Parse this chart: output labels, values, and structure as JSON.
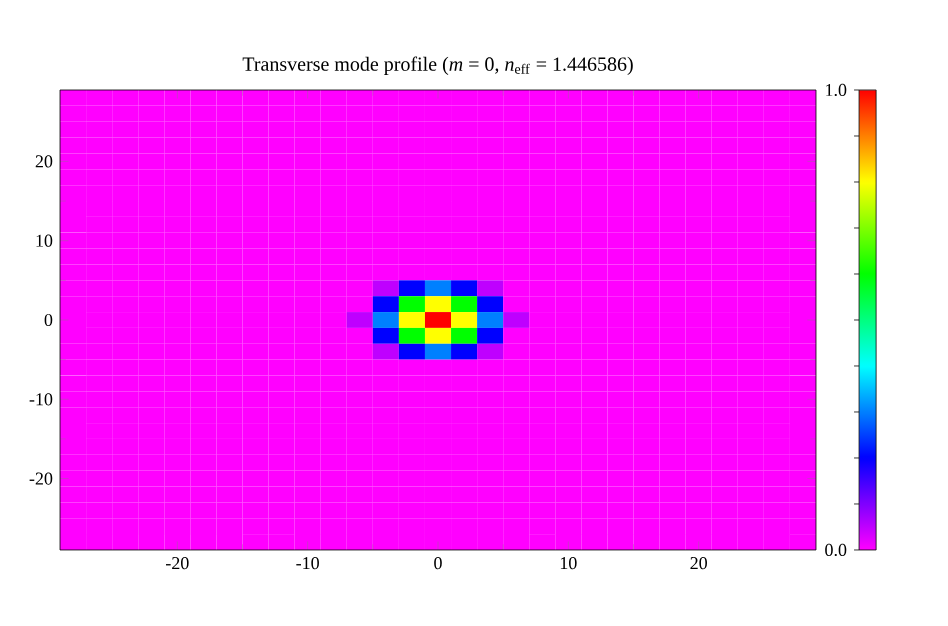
{
  "chart_data": {
    "type": "heatmap",
    "title": "Transverse mode profile (*m* = 0, *n*$_{eff}$ = 1.446586)",
    "xlim": [
      -29,
      29
    ],
    "ylim": [
      -29,
      29
    ],
    "xticks": [
      -20,
      -10,
      0,
      10,
      20
    ],
    "yticks": [
      -20,
      -10,
      0,
      10,
      20
    ],
    "clim": [
      0,
      1
    ],
    "cticks": [
      {
        "value": 0,
        "label": "0.0"
      },
      {
        "value": 0.1,
        "label": null
      },
      {
        "value": 0.2,
        "label": null
      },
      {
        "value": 0.3,
        "label": null
      },
      {
        "value": 0.4,
        "label": null
      },
      {
        "value": 0.5,
        "label": null
      },
      {
        "value": 0.6,
        "label": null
      },
      {
        "value": 0.7,
        "label": null
      },
      {
        "value": 0.8,
        "label": null
      },
      {
        "value": 0.9,
        "label": null
      },
      {
        "value": 1,
        "label": "1.0"
      }
    ],
    "colors": [
      "#ff00ff",
      "#0000ff",
      "#00ffff",
      "#00ff00",
      "#ffff00",
      "#ff0000"
    ],
    "cells": [
      [
        0,
        0,
        0,
        0,
        0,
        0,
        0,
        0,
        0,
        0,
        0,
        0,
        0,
        0,
        0,
        0,
        0,
        0,
        0,
        0,
        0,
        0,
        0,
        0,
        0,
        0,
        0,
        0,
        0
      ],
      [
        0,
        0,
        0,
        0,
        0,
        0,
        0,
        0,
        0,
        0,
        0,
        0,
        0,
        0,
        0,
        0,
        0,
        0,
        0,
        0,
        0,
        0,
        0,
        0,
        0,
        0,
        0,
        0,
        0
      ],
      [
        0,
        0,
        0,
        0,
        0,
        0,
        0,
        0,
        0,
        0,
        0,
        0,
        0,
        0,
        0,
        0,
        0,
        0,
        0,
        0,
        0,
        0,
        0,
        0,
        0,
        0,
        0,
        0,
        0
      ],
      [
        0,
        0,
        0,
        0,
        0,
        0,
        0,
        0,
        0,
        0,
        0,
        0,
        0,
        0,
        0,
        0,
        0,
        0,
        0,
        0,
        0,
        0,
        0,
        0,
        0,
        0,
        0,
        0,
        0
      ],
      [
        0,
        0,
        0,
        0,
        0,
        0,
        0,
        0,
        0,
        0,
        0,
        0,
        0,
        0,
        0,
        0,
        0,
        0,
        0,
        0,
        0,
        0,
        0,
        0,
        0,
        0,
        0,
        0,
        0
      ],
      [
        0,
        0,
        0,
        0,
        0,
        0,
        0,
        0,
        0,
        0,
        0,
        0,
        0,
        0,
        0,
        0,
        0,
        0,
        0,
        0,
        0,
        0,
        0,
        0,
        0,
        0,
        0,
        0,
        0
      ],
      [
        0,
        0,
        0,
        0,
        0,
        0,
        0,
        0,
        0,
        0,
        0,
        0,
        0,
        0,
        0,
        0,
        0,
        0,
        0,
        0,
        0,
        0,
        0,
        0,
        0,
        0,
        0,
        0,
        0
      ],
      [
        0,
        0,
        0,
        0,
        0,
        0,
        0,
        0,
        0,
        0,
        0,
        0,
        0,
        0,
        0,
        0,
        0,
        0,
        0,
        0,
        0,
        0,
        0,
        0,
        0,
        0,
        0,
        0,
        0
      ],
      [
        0,
        0,
        0,
        0,
        0,
        0,
        0,
        0,
        0,
        0,
        0,
        0,
        0,
        0,
        0,
        0,
        0,
        0,
        0,
        0,
        0,
        0,
        0,
        0,
        0,
        0,
        0,
        0,
        0
      ],
      [
        0,
        0,
        0,
        0,
        0,
        0,
        0,
        0,
        0,
        0,
        0,
        0,
        0,
        0,
        0,
        0,
        0,
        0,
        0,
        0,
        0,
        0,
        0,
        0,
        0,
        0,
        0,
        0,
        0
      ],
      [
        0,
        0,
        0,
        0,
        0,
        0,
        0,
        0,
        0,
        0,
        0,
        0,
        0,
        0,
        0,
        0,
        0,
        0,
        0,
        0,
        0,
        0,
        0,
        0,
        0,
        0,
        0,
        0,
        0
      ],
      [
        0,
        0,
        0,
        0,
        0,
        0,
        0,
        0,
        0,
        0,
        0,
        0,
        0,
        0,
        0,
        0,
        0,
        0,
        0,
        0,
        0,
        0,
        0,
        0,
        0,
        0,
        0,
        0,
        0
      ],
      [
        0,
        0,
        0,
        0,
        0,
        0,
        0,
        0,
        0,
        0,
        0,
        0,
        0.05,
        0.2,
        0.3,
        0.2,
        0.05,
        0,
        0,
        0,
        0,
        0,
        0,
        0,
        0,
        0,
        0,
        0,
        0
      ],
      [
        0,
        0,
        0,
        0,
        0,
        0,
        0,
        0,
        0,
        0,
        0,
        0,
        0.2,
        0.6,
        0.8,
        0.6,
        0.2,
        0,
        0,
        0,
        0,
        0,
        0,
        0,
        0,
        0,
        0,
        0,
        0
      ],
      [
        0,
        0,
        0,
        0,
        0,
        0,
        0,
        0,
        0,
        0,
        0,
        0.05,
        0.3,
        0.8,
        1.0,
        0.8,
        0.3,
        0.05,
        0,
        0,
        0,
        0,
        0,
        0,
        0,
        0,
        0,
        0,
        0
      ],
      [
        0,
        0,
        0,
        0,
        0,
        0,
        0,
        0,
        0,
        0,
        0,
        0,
        0.2,
        0.6,
        0.8,
        0.6,
        0.2,
        0,
        0,
        0,
        0,
        0,
        0,
        0,
        0,
        0,
        0,
        0,
        0
      ],
      [
        0,
        0,
        0,
        0,
        0,
        0,
        0,
        0,
        0,
        0,
        0,
        0,
        0.05,
        0.2,
        0.3,
        0.2,
        0.05,
        0,
        0,
        0,
        0,
        0,
        0,
        0,
        0,
        0,
        0,
        0,
        0
      ],
      [
        0,
        0,
        0,
        0,
        0,
        0,
        0,
        0,
        0,
        0,
        0,
        0,
        0,
        0,
        0,
        0,
        0,
        0,
        0,
        0,
        0,
        0,
        0,
        0,
        0,
        0,
        0,
        0,
        0
      ],
      [
        0,
        0,
        0,
        0,
        0,
        0,
        0,
        0,
        0,
        0,
        0,
        0,
        0,
        0,
        0,
        0,
        0,
        0,
        0,
        0,
        0,
        0,
        0,
        0,
        0,
        0,
        0,
        0,
        0
      ],
      [
        0,
        0,
        0,
        0,
        0,
        0,
        0,
        0,
        0,
        0,
        0,
        0,
        0,
        0,
        0,
        0,
        0,
        0,
        0,
        0,
        0,
        0,
        0,
        0,
        0,
        0,
        0,
        0,
        0
      ],
      [
        0,
        0,
        0,
        0,
        0,
        0,
        0,
        0,
        0,
        0,
        0,
        0,
        0,
        0,
        0,
        0,
        0,
        0,
        0,
        0,
        0,
        0,
        0,
        0,
        0,
        0,
        0,
        0,
        0
      ],
      [
        0,
        0,
        0,
        0,
        0,
        0,
        0,
        0,
        0,
        0,
        0,
        0,
        0,
        0,
        0,
        0,
        0,
        0,
        0,
        0,
        0,
        0,
        0,
        0,
        0,
        0,
        0,
        0,
        0
      ],
      [
        0,
        0,
        0,
        0,
        0,
        0,
        0,
        0,
        0,
        0,
        0,
        0,
        0,
        0,
        0,
        0,
        0,
        0,
        0,
        0,
        0,
        0,
        0,
        0,
        0,
        0,
        0,
        0,
        0
      ],
      [
        0,
        0,
        0,
        0,
        0,
        0,
        0,
        0,
        0,
        0,
        0,
        0,
        0,
        0,
        0,
        0,
        0,
        0,
        0,
        0,
        0,
        0,
        0,
        0,
        0,
        0,
        0,
        0,
        0
      ],
      [
        0,
        0,
        0,
        0,
        0,
        0,
        0,
        0,
        0,
        0,
        0,
        0,
        0,
        0,
        0,
        0,
        0,
        0,
        0,
        0,
        0,
        0,
        0,
        0,
        0,
        0,
        0,
        0,
        0
      ],
      [
        0,
        0,
        0,
        0,
        0,
        0,
        0,
        0,
        0,
        0,
        0,
        0,
        0,
        0,
        0,
        0,
        0,
        0,
        0,
        0,
        0,
        0,
        0,
        0,
        0,
        0,
        0,
        0,
        0
      ],
      [
        0,
        0,
        0,
        0,
        0,
        0,
        0,
        0,
        0,
        0,
        0,
        0,
        0,
        0,
        0,
        0,
        0,
        0,
        0,
        0,
        0,
        0,
        0,
        0,
        0,
        0,
        0,
        0,
        0
      ],
      [
        0,
        0,
        0,
        0,
        0,
        0,
        0,
        0,
        0,
        0,
        0,
        0,
        0,
        0,
        0,
        0,
        0,
        0,
        0,
        0,
        0,
        0,
        0,
        0,
        0,
        0,
        0,
        0,
        0
      ],
      [
        0,
        0,
        0,
        0,
        0,
        0,
        0,
        0,
        0,
        0,
        0,
        0,
        0,
        0,
        0,
        0,
        0,
        0,
        0,
        0,
        0,
        0,
        0,
        0,
        0,
        0,
        0,
        0,
        0
      ]
    ]
  }
}
